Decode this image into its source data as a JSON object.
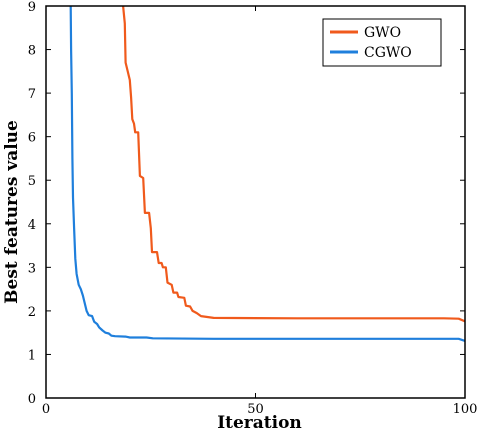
{
  "chart_data": {
    "type": "line",
    "title": "",
    "xlabel": "Iteration",
    "ylabel": "Best features value",
    "xlim": [
      0,
      100
    ],
    "ylim": [
      0,
      9
    ],
    "xticks": [
      0,
      50,
      100
    ],
    "yticks": [
      0,
      1,
      2,
      3,
      4,
      5,
      6,
      7,
      8,
      9
    ],
    "grid": false,
    "legend_position": "top-right",
    "series": [
      {
        "name": "GWO",
        "color": "#f05a1c",
        "points": [
          [
            18.4,
            9.0
          ],
          [
            18.8,
            8.6
          ],
          [
            19.0,
            7.7
          ],
          [
            19.5,
            7.5
          ],
          [
            20.0,
            7.3
          ],
          [
            20.3,
            6.9
          ],
          [
            20.6,
            6.4
          ],
          [
            21.0,
            6.3
          ],
          [
            21.3,
            6.1
          ],
          [
            22.0,
            6.1
          ],
          [
            22.4,
            5.1
          ],
          [
            23.2,
            5.05
          ],
          [
            23.6,
            4.25
          ],
          [
            24.6,
            4.25
          ],
          [
            25.0,
            3.9
          ],
          [
            25.3,
            3.35
          ],
          [
            26.5,
            3.35
          ],
          [
            26.9,
            3.1
          ],
          [
            27.6,
            3.1
          ],
          [
            27.9,
            3.0
          ],
          [
            28.6,
            3.0
          ],
          [
            29.0,
            2.65
          ],
          [
            30.0,
            2.6
          ],
          [
            30.4,
            2.42
          ],
          [
            31.3,
            2.42
          ],
          [
            31.6,
            2.32
          ],
          [
            33.0,
            2.3
          ],
          [
            33.4,
            2.12
          ],
          [
            34.4,
            2.1
          ],
          [
            35.0,
            2.0
          ],
          [
            36.0,
            1.95
          ],
          [
            37.0,
            1.88
          ],
          [
            38.5,
            1.86
          ],
          [
            40.0,
            1.84
          ],
          [
            60.0,
            1.83
          ],
          [
            80.0,
            1.83
          ],
          [
            95.0,
            1.83
          ],
          [
            98.5,
            1.82
          ],
          [
            100.0,
            1.76
          ]
        ]
      },
      {
        "name": "CGWO",
        "color": "#1f7fdc",
        "points": [
          [
            5.9,
            9.0
          ],
          [
            6.0,
            8.0
          ],
          [
            6.15,
            7.0
          ],
          [
            6.3,
            5.5
          ],
          [
            6.45,
            4.6
          ],
          [
            6.7,
            3.9
          ],
          [
            7.0,
            3.2
          ],
          [
            7.3,
            2.85
          ],
          [
            7.8,
            2.6
          ],
          [
            8.3,
            2.5
          ],
          [
            8.8,
            2.35
          ],
          [
            9.2,
            2.2
          ],
          [
            9.7,
            2.0
          ],
          [
            10.2,
            1.9
          ],
          [
            11.0,
            1.88
          ],
          [
            11.5,
            1.75
          ],
          [
            12.2,
            1.7
          ],
          [
            12.7,
            1.62
          ],
          [
            13.5,
            1.55
          ],
          [
            14.2,
            1.5
          ],
          [
            15.0,
            1.48
          ],
          [
            15.6,
            1.43
          ],
          [
            16.5,
            1.42
          ],
          [
            19.0,
            1.41
          ],
          [
            20.0,
            1.39
          ],
          [
            24.0,
            1.39
          ],
          [
            25.5,
            1.37
          ],
          [
            40.0,
            1.36
          ],
          [
            70.0,
            1.36
          ],
          [
            98.5,
            1.36
          ],
          [
            100.0,
            1.31
          ]
        ]
      }
    ]
  }
}
